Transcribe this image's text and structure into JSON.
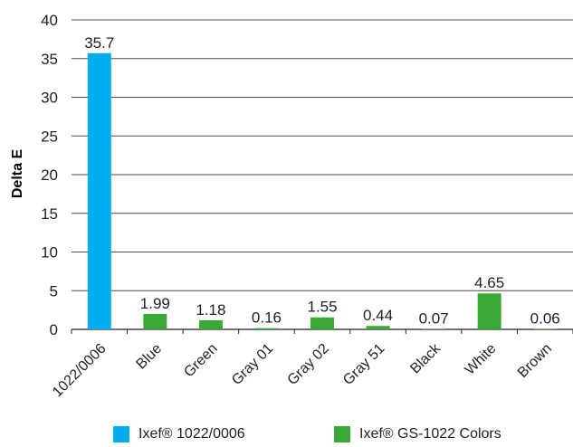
{
  "chart_data": {
    "type": "bar",
    "ylabel": "Delta E",
    "xlabel": "",
    "ylim": [
      0,
      40
    ],
    "yticks": [
      0,
      5,
      10,
      15,
      20,
      25,
      30,
      35,
      40
    ],
    "grid": true,
    "legend_position": "bottom",
    "categories": [
      "1022/0006",
      "Blue",
      "Green",
      "Gray 01",
      "Gray 02",
      "Gray 51",
      "Black",
      "White",
      "Brown"
    ],
    "values": [
      35.7,
      1.99,
      1.18,
      0.16,
      1.55,
      0.44,
      0.07,
      4.65,
      0.06
    ],
    "data_labels": [
      "35.7",
      "1.99",
      "1.18",
      "0.16",
      "1.55",
      "0.44",
      "0.07",
      "4.65",
      "0.06"
    ],
    "series_index": [
      0,
      1,
      1,
      1,
      1,
      1,
      1,
      1,
      1
    ],
    "series": [
      {
        "name": "Ixef® 1022/0006",
        "color": "#00aeef"
      },
      {
        "name": "Ixef® GS-1022 Colors",
        "color": "#3aa935"
      }
    ]
  }
}
